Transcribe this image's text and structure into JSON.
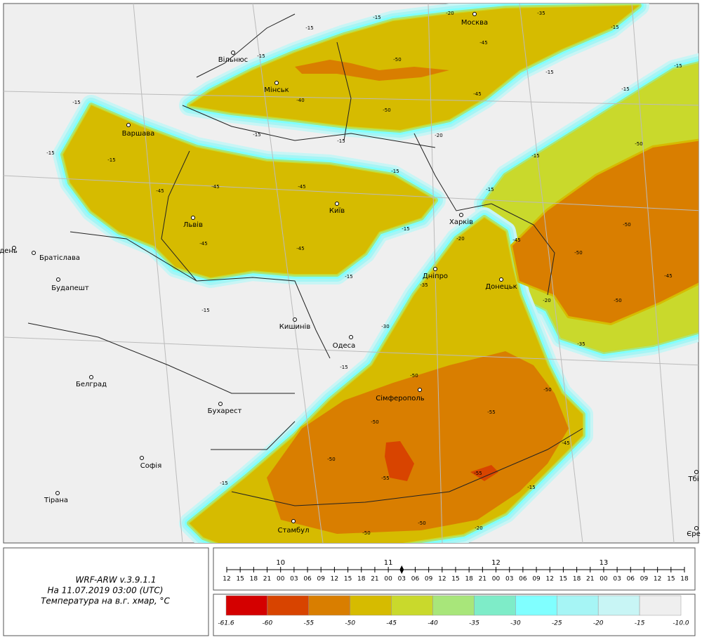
{
  "map": {
    "cities": [
      "Москва",
      "Вільнюс",
      "Мінськ",
      "Варшава",
      "Київ",
      "Львів",
      "Харків",
      "Дніпро",
      "Донецьк",
      "Кишинів",
      "Одеса",
      "Сімферополь",
      "Братіслава",
      "Будапешт",
      "Белград",
      "Бухарест",
      "Софія",
      "Тірана",
      "Стамбул",
      "день",
      "Тбі",
      "Єре"
    ],
    "contour_labels": [
      "-15",
      "-20",
      "-35",
      "-15",
      "-15",
      "-15",
      "-45",
      "-50",
      "-15",
      "-15",
      "-45",
      "-40",
      "-15",
      "-50",
      "-15",
      "-20",
      "-15",
      "-15",
      "-15",
      "-15",
      "-50",
      "-15",
      "-45",
      "-45",
      "-45",
      "-15",
      "-15",
      "-15",
      "-50",
      "-20",
      "-45",
      "-45",
      "-45",
      "-50",
      "-45",
      "-15",
      "-35",
      "-50",
      "-20",
      "-15",
      "-30",
      "-35",
      "-15",
      "-50",
      "-50",
      "-55",
      "-50",
      "-45",
      "-50",
      "-55",
      "-55",
      "-15",
      "-15",
      "-50",
      "-20",
      "-50"
    ]
  },
  "info": {
    "model": "WRF-ARW v.3.9.1.1",
    "time": "На 11.07.2019 03:00 (UTC)",
    "field": "Температура на в.г. хмар, °C"
  },
  "timeline": {
    "days": [
      "10",
      "11",
      "12",
      "13"
    ],
    "hours": [
      "12",
      "15",
      "18",
      "21",
      "00",
      "03",
      "06",
      "09",
      "12",
      "15",
      "18",
      "21",
      "00",
      "03",
      "06",
      "09",
      "12",
      "15",
      "18",
      "21",
      "00",
      "03",
      "06",
      "09",
      "12",
      "15",
      "18",
      "21",
      "00",
      "03",
      "06",
      "09",
      "12",
      "15",
      "18"
    ]
  },
  "legend": {
    "colors": [
      "#d40000",
      "#d84400",
      "#d97e00",
      "#d6bb00",
      "#c9d92c",
      "#a8e67a",
      "#7eecc8",
      "#80ffff",
      "#a6f5f5",
      "#c8f5f5",
      "#efefef"
    ],
    "labels": [
      "-61.6",
      "-60",
      "-55",
      "-50",
      "-45",
      "-40",
      "-35",
      "-30",
      "-25",
      "-20",
      "-15",
      "-10.0"
    ]
  }
}
